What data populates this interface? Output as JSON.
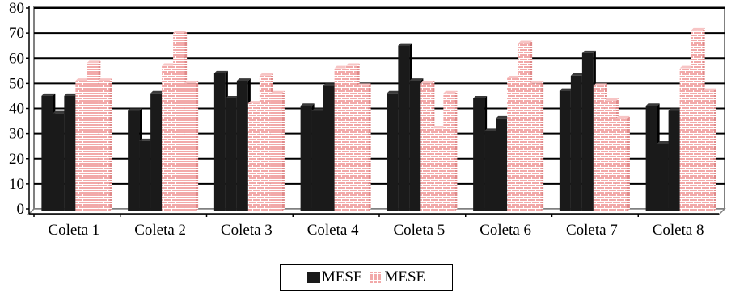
{
  "chart_data": {
    "type": "bar",
    "title": "",
    "xlabel": "",
    "ylabel": "",
    "ylim": [
      0,
      80
    ],
    "yticks": [
      "0",
      "10",
      "20",
      "30",
      "40",
      "50",
      "60",
      "70",
      "80"
    ],
    "grid": true,
    "legend_position": "bottom",
    "categories": [
      "Coleta 1",
      "Coleta 2",
      "Coleta 3",
      "Coleta 4",
      "Coleta 5",
      "Coleta 6",
      "Coleta 7",
      "Coleta 8"
    ],
    "series": [
      {
        "name": "MESF",
        "color": "#1a1a1a",
        "bars_per_category": 3,
        "values": [
          [
            46,
            39,
            46
          ],
          [
            40,
            28,
            47
          ],
          [
            55,
            45,
            52
          ],
          [
            42,
            40,
            50
          ],
          [
            47,
            66,
            52
          ],
          [
            45,
            32,
            37
          ],
          [
            48,
            54,
            63
          ],
          [
            42,
            27,
            40
          ]
        ]
      },
      {
        "name": "MESE",
        "color": "#f2a9a9",
        "bars_per_category": 3,
        "values": [
          [
            52,
            59,
            52
          ],
          [
            58,
            71,
            51
          ],
          [
            43,
            54,
            47
          ],
          [
            57,
            58,
            50
          ],
          [
            51,
            33,
            47
          ],
          [
            53,
            67,
            51
          ],
          [
            50,
            44,
            37
          ],
          [
            57,
            72,
            48
          ]
        ]
      }
    ]
  }
}
